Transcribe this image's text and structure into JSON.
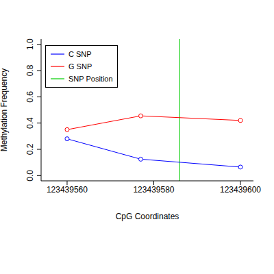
{
  "chart_data": {
    "type": "line",
    "x_label": "CpG Coordinates",
    "y_label": "Methylation Frequency",
    "x": [
      123439560,
      123439577,
      123439600
    ],
    "series": [
      {
        "name": "C SNP",
        "color": "#0000ff",
        "marker": "circle_open",
        "values": [
          0.28,
          0.125,
          0.065
        ]
      },
      {
        "name": "G SNP",
        "color": "#ff0000",
        "marker": "circle_open",
        "values": [
          0.35,
          0.455,
          0.42
        ]
      }
    ],
    "snp_position": {
      "name": "SNP Position",
      "color": "#00cd00",
      "value": 123439586
    },
    "xlim": [
      123439554,
      123439603
    ],
    "xticks": [
      123439560,
      123439580,
      123439600
    ],
    "ylim": [
      -0.04,
      1.04
    ],
    "yticks": [
      {
        "value": 0,
        "label": "0.0"
      },
      0.2,
      0.4,
      0.6,
      0.8,
      {
        "value": 1,
        "label": "1.0"
      }
    ],
    "legend": "upper left"
  }
}
